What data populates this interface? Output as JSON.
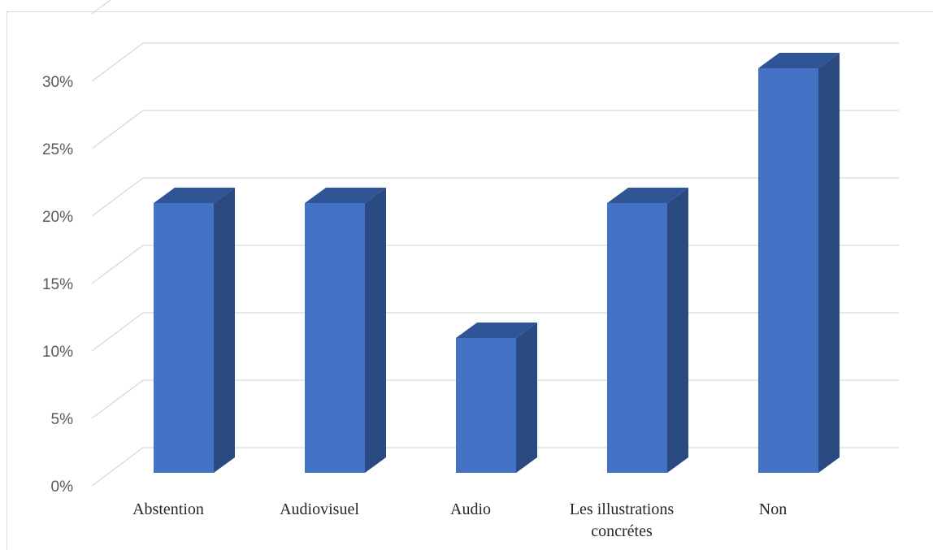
{
  "chart_data": {
    "type": "bar",
    "style": "3d-clustered-column",
    "categories": [
      "Abstention",
      "Audiovisuel",
      "Audio",
      "Les illustrations concrétes",
      "Non"
    ],
    "category_lines": [
      [
        "Abstention"
      ],
      [
        "Audiovisuel"
      ],
      [
        "Audio"
      ],
      [
        "Les illustrations",
        "concrétes"
      ],
      [
        "Non"
      ]
    ],
    "values": [
      20,
      20,
      10,
      20,
      30
    ],
    "value_format": "percent",
    "ylim": [
      0,
      30
    ],
    "yticks": [
      0,
      5,
      10,
      15,
      20,
      25,
      30
    ],
    "ytick_labels": [
      "0%",
      "5%",
      "10%",
      "15%",
      "20%",
      "25%",
      "30%"
    ],
    "grid": true,
    "legend": "none",
    "title": "",
    "xlabel": "",
    "ylabel": "",
    "colors": {
      "front": "#4472C4",
      "top": "#2F5597",
      "side": "#2B4A82",
      "grid": "#D9D9D9"
    }
  }
}
